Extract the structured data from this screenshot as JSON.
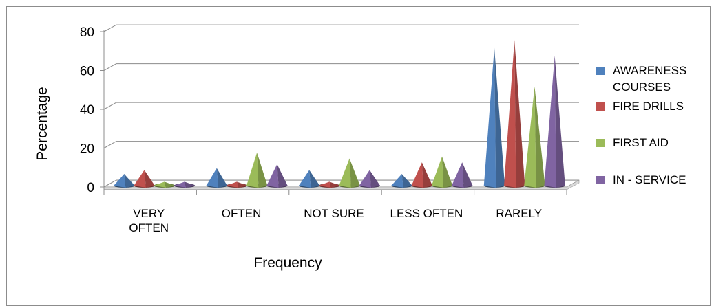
{
  "chart_data": {
    "type": "bar",
    "variant": "3d-cone/pyramid",
    "title": "",
    "xlabel": "Frequency",
    "ylabel": "Percentage",
    "ylim": [
      0,
      80
    ],
    "yticks": [
      0,
      20,
      40,
      60,
      80
    ],
    "categories": [
      [
        "VERY",
        "OFTEN"
      ],
      [
        "OFTEN"
      ],
      [
        "NOT SURE"
      ],
      [
        "LESS OFTEN"
      ],
      [
        "RARELY"
      ]
    ],
    "series": [
      {
        "name": [
          "AWARENESS",
          "COURSES"
        ],
        "color": "#4f81bd",
        "values": [
          6,
          9,
          8,
          6,
          71
        ]
      },
      {
        "name": [
          "FIRE DRILLS"
        ],
        "color": "#c0504d",
        "values": [
          8,
          2,
          2,
          12,
          75
        ]
      },
      {
        "name": [
          "FIRST AID"
        ],
        "color": "#9bbb59",
        "values": [
          2,
          17,
          14,
          15,
          51
        ]
      },
      {
        "name": [
          "IN - SERVICE"
        ],
        "color": "#8064a2",
        "values": [
          2,
          11,
          8,
          12,
          67
        ]
      }
    ],
    "grid": true,
    "legend_position": "right"
  }
}
